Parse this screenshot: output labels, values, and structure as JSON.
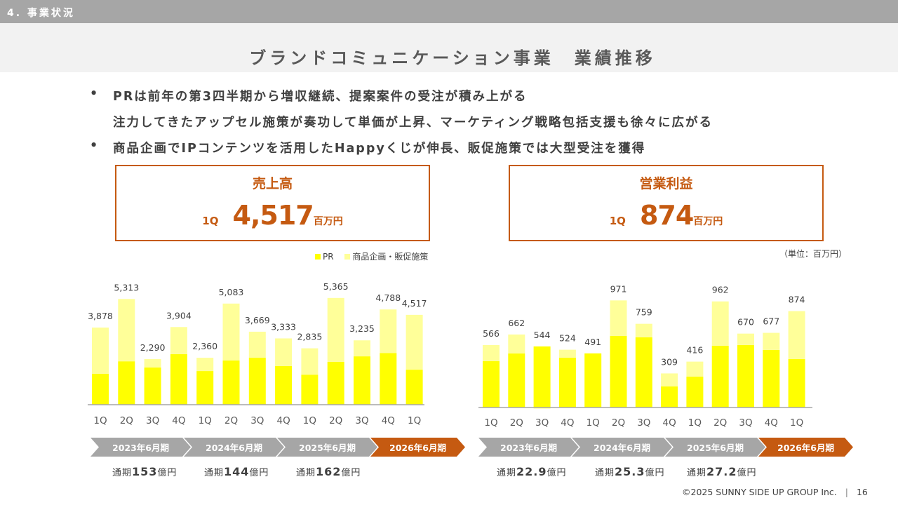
{
  "header": {
    "section": "4. 事業状況",
    "title": "ブランドコミュニケーション事業　業績推移"
  },
  "bullets": [
    {
      "marker": "•",
      "text": "PRは前年の第3四半期から増収継続、提案案件の受注が積み上がる"
    },
    {
      "marker": "",
      "text": "注力してきたアップセル施策が奏功して単価が上昇、マーケティング戦略包括支援も徐々に広がる"
    },
    {
      "marker": "•",
      "text": "商品企画でIPコンテンツを活用したHappyくじが伸長、販促施策では大型受注を獲得"
    }
  ],
  "kpis": {
    "sales": {
      "title": "売上高",
      "quarter": "1Q",
      "value": "4,517",
      "unit": "百万円"
    },
    "operating_profit": {
      "title": "営業利益",
      "quarter": "1Q",
      "value": "874",
      "unit": "百万円"
    }
  },
  "legend": {
    "pr": "PR",
    "product": "商品企画・販促施策"
  },
  "unit_note": "（単位：百万円）",
  "colors": {
    "accent": "#c55a11",
    "pr": "#ffff00",
    "product": "#ffff99",
    "period_gray": "#a6a6a6",
    "axis": "#a6a6a6"
  },
  "periods": [
    "2023年6月期",
    "2024年6月期",
    "2025年6月期",
    "2026年6月期"
  ],
  "sales_annual": [
    {
      "prefix": "通期",
      "value": "153",
      "unit": "億円"
    },
    {
      "prefix": "通期",
      "value": "144",
      "unit": "億円"
    },
    {
      "prefix": "通期",
      "value": "162",
      "unit": "億円"
    }
  ],
  "profit_annual": [
    {
      "prefix": "通期",
      "value": "22.9",
      "unit": "億円"
    },
    {
      "prefix": "通期",
      "value": "25.3",
      "unit": "億円"
    },
    {
      "prefix": "通期",
      "value": "27.2",
      "unit": "億円"
    }
  ],
  "chart_data": [
    {
      "type": "bar",
      "stacked": true,
      "title": "売上高",
      "categories": [
        "1Q",
        "2Q",
        "3Q",
        "4Q",
        "1Q",
        "2Q",
        "3Q",
        "4Q",
        "1Q",
        "2Q",
        "3Q",
        "4Q",
        "1Q"
      ],
      "period_groups": [
        {
          "label": "2023年6月期",
          "count": 4
        },
        {
          "label": "2024年6月期",
          "count": 4
        },
        {
          "label": "2025年6月期",
          "count": 4
        },
        {
          "label": "2026年6月期",
          "count": 1
        }
      ],
      "totals": [
        3878,
        5313,
        2290,
        3904,
        2360,
        5083,
        3669,
        3333,
        2835,
        5365,
        3235,
        4788,
        4517
      ],
      "total_labels": [
        "3,878",
        "5,313",
        "2,290",
        "3,904",
        "2,360",
        "5,083",
        "3,669",
        "3,333",
        "2,835",
        "5,365",
        "3,235",
        "4,788",
        "4,517"
      ],
      "series": [
        {
          "name": "PR",
          "values": [
            1550,
            2180,
            1870,
            2540,
            1690,
            2220,
            2360,
            1940,
            1510,
            2150,
            2430,
            2600,
            1760
          ]
        },
        {
          "name": "商品企画・販促施策",
          "values": [
            2328,
            3133,
            420,
            1364,
            670,
            2863,
            1309,
            1393,
            1325,
            3215,
            805,
            2188,
            2757
          ]
        }
      ],
      "ylim": [
        0,
        5600
      ],
      "unit": "百万円",
      "legend": "top-right"
    },
    {
      "type": "bar",
      "stacked": true,
      "title": "営業利益",
      "categories": [
        "1Q",
        "2Q",
        "3Q",
        "4Q",
        "1Q",
        "2Q",
        "3Q",
        "4Q",
        "1Q",
        "2Q",
        "3Q",
        "4Q",
        "1Q"
      ],
      "period_groups": [
        {
          "label": "2023年6月期",
          "count": 4
        },
        {
          "label": "2024年6月期",
          "count": 4
        },
        {
          "label": "2025年6月期",
          "count": 4
        },
        {
          "label": "2026年6月期",
          "count": 1
        }
      ],
      "totals": [
        566,
        662,
        544,
        524,
        491,
        971,
        759,
        309,
        416,
        962,
        670,
        677,
        874
      ],
      "total_labels": [
        "566",
        "662",
        "544",
        "524",
        "491",
        "971",
        "759",
        "309",
        "416",
        "962",
        "670",
        "677",
        "874"
      ],
      "series": [
        {
          "name": "PR",
          "values": [
            420,
            490,
            554,
            452,
            491,
            650,
            637,
            191,
            280,
            560,
            567,
            522,
            440
          ]
        },
        {
          "name": "商品企画・販促施策",
          "values": [
            146,
            172,
            -10,
            72,
            0,
            321,
            122,
            118,
            136,
            402,
            103,
            155,
            434
          ]
        }
      ],
      "ylim": [
        -20,
        1050
      ],
      "unit": "百万円"
    }
  ],
  "footer": {
    "copyright": "©2025 SUNNY SIDE UP GROUP Inc.",
    "separator": "|",
    "page": "16"
  }
}
